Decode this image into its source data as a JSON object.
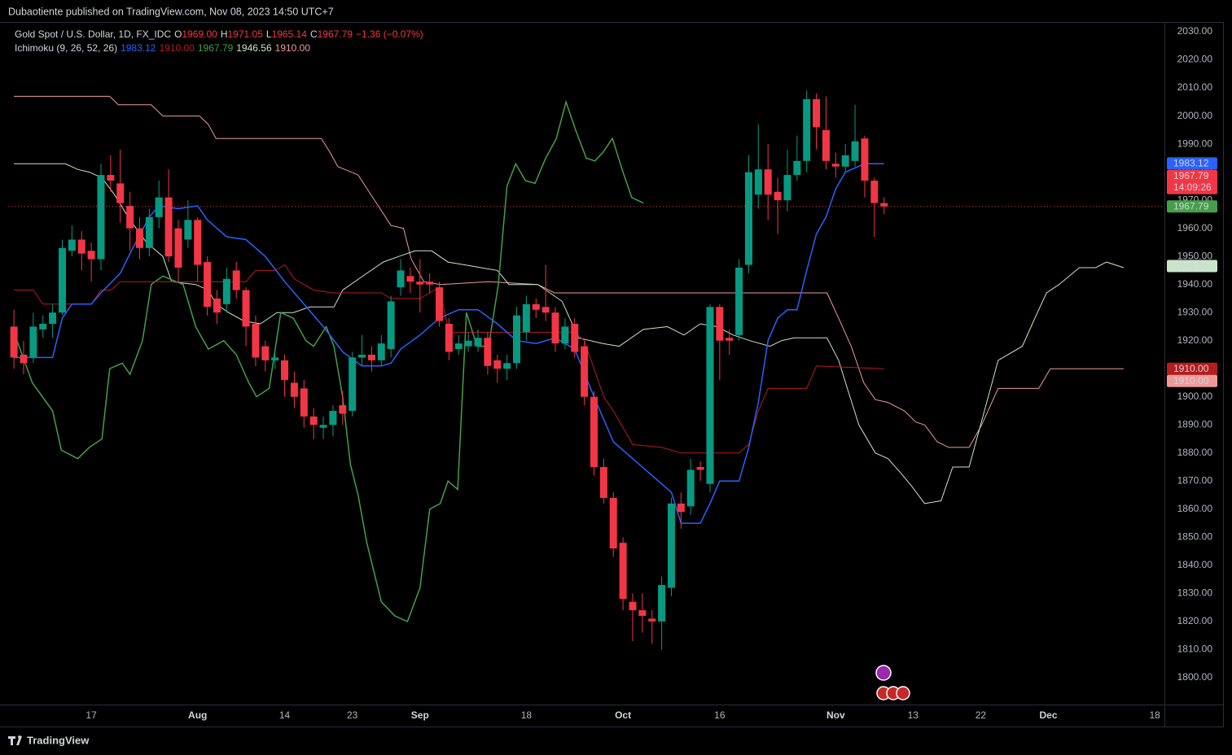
{
  "header": "Dubaotiente published on TradingView.com, Nov 08, 2023 14:50 UTC+7",
  "footer": "TradingView",
  "legend": {
    "symbol": "Gold Spot / U.S. Dollar, 1D, FX_IDC",
    "ohlc": [
      {
        "key": "O",
        "text": "1969.00"
      },
      {
        "key": "H",
        "text": "1971.05"
      },
      {
        "key": "L",
        "text": "1965.14"
      },
      {
        "key": "C",
        "text": "1967.79"
      }
    ],
    "change": "−1.36 (−0.07%)",
    "indicator": "Ichimoku (9, 26, 52, 26)"
  },
  "chart_data": {
    "type": "candlestick",
    "up_color": "#089981",
    "down_color": "#f23645",
    "x": [
      0,
      1,
      2,
      3,
      4,
      5,
      6,
      7,
      8,
      9,
      10,
      11,
      12,
      13,
      14,
      15,
      16,
      17,
      18,
      19,
      20,
      21,
      22,
      23,
      24,
      25,
      26,
      27,
      28,
      29,
      30,
      31,
      32,
      33,
      34,
      35,
      36,
      37,
      38,
      39,
      40,
      41,
      42,
      43,
      44,
      45,
      46,
      47,
      48,
      49,
      50,
      51,
      52,
      53,
      54,
      55,
      56,
      57,
      58,
      59,
      60,
      61,
      62,
      63,
      64,
      65,
      66,
      67,
      68,
      69,
      70,
      71,
      72,
      73,
      74,
      75,
      76,
      77,
      78,
      79,
      80,
      81,
      82,
      83,
      84,
      85,
      86,
      87,
      88,
      89,
      90
    ],
    "open": [
      1925,
      1915,
      1914,
      1924,
      1926,
      1930,
      1952,
      1956,
      1952,
      1949,
      1979,
      1976,
      1968,
      1960,
      1953,
      1964,
      1971,
      1960,
      1956,
      1963,
      1948,
      1935,
      1933,
      1945,
      1938,
      1926,
      1918,
      1913,
      1913,
      1905,
      1903,
      1893,
      1889,
      1890,
      1897,
      1895,
      1914,
      1915,
      1913,
      1917,
      1939,
      1943,
      1941,
      1941,
      1939,
      1926,
      1917,
      1918,
      1918,
      1921,
      1913,
      1910,
      1912,
      1923,
      1933,
      1932,
      1930,
      1919,
      1926,
      1918,
      1900,
      1875,
      1864,
      1848,
      1827,
      1824,
      1821,
      1820,
      1832,
      1862,
      1861,
      1875,
      1869,
      1932,
      1921,
      1922,
      1947,
      1972,
      1981,
      1973,
      1970,
      1979,
      1984,
      2006,
      1995,
      1983,
      1982,
      1984,
      1992,
      1977,
      1969
    ],
    "high": [
      1931,
      1920,
      1930,
      1929,
      1933,
      1956,
      1961,
      1959,
      1955,
      1983,
      1986,
      1988,
      1973,
      1964,
      1967,
      1977,
      1981,
      1963,
      1970,
      1964,
      1950,
      1938,
      1946,
      1948,
      1939,
      1929,
      1920,
      1917,
      1915,
      1909,
      1906,
      1896,
      1893,
      1897,
      1902,
      1916,
      1922,
      1918,
      1922,
      1936,
      1949,
      1946,
      1949,
      1944,
      1941,
      1928,
      1922,
      1923,
      1924,
      1923,
      1915,
      1915,
      1932,
      1936,
      1935,
      1947,
      1932,
      1928,
      1928,
      1920,
      1902,
      1878,
      1866,
      1850,
      1830,
      1830,
      1824,
      1836,
      1864,
      1866,
      1878,
      1877,
      1933,
      1933,
      1924,
      1949,
      1986,
      1997,
      1990,
      1978,
      1988,
      1993,
      2009,
      2008,
      2007,
      1987,
      1990,
      2004,
      1993,
      1978,
      1971.05
    ],
    "low": [
      1910,
      1908,
      1912,
      1921,
      1921,
      1929,
      1950,
      1945,
      1941,
      1945,
      1973,
      1962,
      1952,
      1949,
      1950,
      1960,
      1948,
      1941,
      1953,
      1941,
      1929,
      1926,
      1930,
      1935,
      1918,
      1911,
      1909,
      1910,
      1900,
      1896,
      1889,
      1885,
      1885,
      1886,
      1890,
      1893,
      1911,
      1909,
      1911,
      1914,
      1936,
      1937,
      1930,
      1937,
      1925,
      1913,
      1915,
      1916,
      1916,
      1908,
      1905,
      1906,
      1910,
      1920,
      1928,
      1927,
      1916,
      1917,
      1914,
      1897,
      1872,
      1862,
      1843,
      1824,
      1813,
      1816,
      1812,
      1810,
      1829,
      1853,
      1858,
      1870,
      1866,
      1906,
      1915,
      1920,
      1944,
      1967,
      1963,
      1958,
      1966,
      1977,
      1980,
      1988,
      1981,
      1978,
      1980,
      1982,
      1971,
      1957,
      1965.14
    ],
    "close": [
      1914,
      1912,
      1925,
      1926,
      1930,
      1953,
      1956,
      1951,
      1949,
      1979,
      1977,
      1969,
      1960,
      1953,
      1964,
      1971,
      1950,
      1946,
      1963,
      1947,
      1932,
      1930,
      1942,
      1938,
      1925,
      1914,
      1913,
      1914,
      1906,
      1900,
      1893,
      1890,
      1890,
      1895,
      1894,
      1914,
      1915,
      1913,
      1919,
      1934,
      1945,
      1941,
      1940,
      1940,
      1927,
      1916,
      1919,
      1920,
      1921,
      1911,
      1910,
      1912,
      1929,
      1933,
      1931,
      1930,
      1919,
      1925,
      1916,
      1900,
      1875,
      1864,
      1846,
      1828,
      1824,
      1822,
      1820,
      1833,
      1862,
      1859,
      1874,
      1874,
      1932,
      1920,
      1920,
      1946,
      1980,
      1981,
      1972,
      1970,
      1979,
      1984,
      2006,
      1996,
      1984,
      1982,
      1986,
      1991,
      1977,
      1969,
      1967.79
    ],
    "lines": [
      {
        "color": "#ef9a9a",
        "x": [
          0,
          9.9,
          10.8,
          14.2,
          15.4,
          19.2,
          20.1,
          20.9,
          31.8,
          32.7,
          33.5,
          35.6,
          37.3,
          39.0,
          40.3,
          41.1,
          42.4,
          44.1,
          49.1,
          54.2,
          55.9,
          84.1,
          85.3,
          86.6,
          87.9,
          89.1,
          90.4,
          92.1,
          93.3,
          94.2,
          95.5,
          96.7,
          98.8,
          100.1,
          101.8,
          106.0,
          107.2,
          114.8
        ],
        "values": [
          2007,
          2007,
          2004,
          2004,
          2000,
          2000,
          1997,
          1992,
          1992,
          1987,
          1982,
          1979,
          1970,
          1961,
          1960,
          1949,
          1941,
          1940,
          1941,
          1940,
          1937,
          1937,
          1928,
          1918,
          1905,
          1899,
          1898,
          1895,
          1891,
          1890,
          1884,
          1882,
          1882,
          1890,
          1903,
          1903,
          1910,
          1910
        ]
      },
      {
        "color": "#c8e6c9",
        "x": [
          0,
          5.3,
          6.6,
          7.8,
          9.1,
          10.4,
          12.0,
          13.7,
          15.4,
          16.3,
          18.8,
          20.1,
          20.9,
          22.2,
          23.8,
          25.5,
          27.2,
          28.9,
          30.6,
          33.1,
          34.0,
          36.5,
          38.2,
          39.8,
          41.5,
          43.2,
          44.9,
          46.6,
          48.3,
          50.0,
          51.2,
          54.2,
          56.7,
          58.4,
          60.9,
          62.6,
          65.1,
          67.6,
          69.3,
          71.0,
          72.7,
          74.4,
          76.1,
          78.2,
          79.4,
          80.7,
          84.1,
          85.3,
          86.2,
          87.4,
          89.1,
          90.4,
          91.7,
          92.9,
          94.2,
          95.9,
          97.1,
          98.8,
          101.8,
          104.3,
          105.6,
          106.8,
          108.1,
          110.2,
          111.9,
          113.0,
          114.8
        ],
        "values": [
          1983,
          1983,
          1981,
          1980,
          1978,
          1972,
          1963,
          1955,
          1950,
          1941,
          1940,
          1938,
          1933,
          1930,
          1927,
          1926,
          1930,
          1930,
          1932,
          1932,
          1938,
          1944,
          1948,
          1950,
          1952,
          1952,
          1948,
          1947,
          1946,
          1945,
          1940,
          1940,
          1934,
          1921,
          1919,
          1918,
          1924,
          1925,
          1922,
          1926,
          1925,
          1922,
          1920,
          1918,
          1920,
          1921,
          1921,
          1913,
          1903,
          1890,
          1880,
          1878,
          1873,
          1868,
          1862,
          1863,
          1875,
          1875,
          1913,
          1918,
          1928,
          1937,
          1940,
          1946,
          1946,
          1948,
          1946
        ]
      },
      {
        "color": "#43a047",
        "x": [
          0,
          1.9,
          4.0,
          4.9,
          6.6,
          7.8,
          9.1,
          9.9,
          11.2,
          12.0,
          13.3,
          14.2,
          15.4,
          17.5,
          18.8,
          20.1,
          21.7,
          23.0,
          24.3,
          25.1,
          26.4,
          27.6,
          28.9,
          30.2,
          31.0,
          32.3,
          33.1,
          34.0,
          34.8,
          35.6,
          36.5,
          38.0,
          39.4,
          40.7,
          42.0,
          43.0,
          44.1,
          44.9,
          45.9,
          46.8,
          47.9,
          49.1,
          50.1,
          51.0,
          51.9,
          52.9,
          53.9,
          55.0,
          56.1,
          57.1,
          58.1,
          59.2,
          60.1,
          60.9,
          61.9,
          63.0,
          63.9,
          65.1
        ],
        "values": [
          1923,
          1905,
          1895,
          1881,
          1878,
          1882,
          1885,
          1910,
          1912,
          1908,
          1920,
          1940,
          1943,
          1940,
          1925,
          1917,
          1920,
          1915,
          1905,
          1900,
          1903,
          1930,
          1928,
          1920,
          1918,
          1925,
          1918,
          1900,
          1876,
          1865,
          1848,
          1827,
          1822,
          1820,
          1832,
          1860,
          1862,
          1870,
          1867,
          1930,
          1918,
          1918,
          1940,
          1975,
          1983,
          1977,
          1976,
          1985,
          1992,
          2005,
          1995,
          1985,
          1984,
          1987,
          1992,
          1980,
          1971,
          1969
        ]
      },
      {
        "color": "#b71c1c",
        "x": [
          0,
          2,
          3,
          8,
          9,
          10,
          11,
          24,
          25,
          27,
          28,
          29,
          31,
          33,
          38,
          39,
          42,
          43,
          44,
          45,
          58,
          59,
          61,
          62,
          64,
          67,
          69,
          75,
          76,
          77,
          78,
          82,
          83,
          90
        ],
        "values": [
          1938,
          1938,
          1933,
          1933,
          1938,
          1938,
          1941,
          1941,
          1945,
          1945,
          1947,
          1942,
          1938,
          1937,
          1937,
          1935,
          1935,
          1937,
          1939,
          1923,
          1923,
          1920,
          1900,
          1895,
          1883,
          1882,
          1880,
          1880,
          1883,
          1895,
          1903,
          1903,
          1911,
          1910
        ]
      },
      {
        "color": "#2962ff",
        "x": [
          0,
          4,
          5,
          6,
          8,
          9,
          11,
          12,
          14,
          15,
          17,
          19,
          20,
          22,
          24,
          26,
          28,
          30,
          32,
          34,
          36,
          38,
          39,
          40,
          42,
          44,
          46,
          48,
          50,
          52,
          54,
          56,
          58,
          60,
          62,
          64,
          66,
          68,
          69,
          71,
          72,
          73,
          75,
          76,
          77,
          78,
          79,
          80,
          81,
          82,
          83,
          84,
          85,
          86,
          88,
          90
        ],
        "values": [
          1914,
          1914,
          1928,
          1933,
          1933,
          1937,
          1944,
          1951,
          1964,
          1968,
          1967,
          1968,
          1963,
          1957,
          1956,
          1950,
          1941,
          1933,
          1925,
          1916,
          1911,
          1911,
          1912,
          1917,
          1922,
          1928,
          1931,
          1931,
          1926,
          1920,
          1919,
          1921,
          1917,
          1900,
          1884,
          1878,
          1872,
          1866,
          1855,
          1855,
          1862,
          1870,
          1870,
          1882,
          1898,
          1920,
          1928,
          1931,
          1931,
          1945,
          1958,
          1964,
          1974,
          1980,
          1983,
          1983
        ]
      }
    ],
    "price_tags": [
      {
        "value": 1983.12,
        "color": "#2962ff"
      },
      {
        "value": 1967.79,
        "color": "#f23645",
        "countdown": "14:09:26"
      },
      {
        "value": 1967.79,
        "color": "#43a047"
      },
      {
        "value": 1946.56,
        "color": "#c8e6c9"
      },
      {
        "value": 1910,
        "label": "1910.00",
        "color": "#b71c1c"
      },
      {
        "value": 1910,
        "label": "1910.00",
        "color": "#ef9a9a"
      }
    ],
    "xlim": [
      -0.6,
      119.0
    ],
    "ylim": [
      1790.7,
      2033.2
    ],
    "xticks": [
      {
        "value": 8,
        "label": "17"
      },
      {
        "value": 19,
        "label": "Aug"
      },
      {
        "value": 28,
        "label": "14"
      },
      {
        "value": 35,
        "label": "23"
      },
      {
        "value": 42,
        "label": "Sep"
      },
      {
        "value": 53,
        "label": "18"
      },
      {
        "value": 63,
        "label": "Oct"
      },
      {
        "value": 73,
        "label": "16"
      },
      {
        "value": 85,
        "label": "Nov"
      },
      {
        "value": 93,
        "label": "13"
      },
      {
        "value": 100,
        "label": "22"
      },
      {
        "value": 107,
        "label": "Dec"
      },
      {
        "value": 118,
        "label": "18"
      }
    ],
    "yticks": [
      {
        "value": 1800,
        "label": "1800.00"
      },
      {
        "value": 1810,
        "label": "1810.00"
      },
      {
        "value": 1820,
        "label": "1820.00"
      },
      {
        "value": 1830,
        "label": "1830.00"
      },
      {
        "value": 1840,
        "label": "1840.00"
      },
      {
        "value": 1850,
        "label": "1850.00"
      },
      {
        "value": 1860,
        "label": "1860.00"
      },
      {
        "value": 1870,
        "label": "1870.00"
      },
      {
        "value": 1880,
        "label": "1880.00"
      },
      {
        "value": 1890,
        "label": "1890.00"
      },
      {
        "value": 1900,
        "label": "1900.00"
      },
      {
        "value": 1910,
        "label": "1910.00"
      },
      {
        "value": 1920,
        "label": "1920.00"
      },
      {
        "value": 1930,
        "label": "1930.00"
      },
      {
        "value": 1940,
        "label": "1940.00"
      },
      {
        "value": 1950,
        "label": "1950.00"
      },
      {
        "value": 1960,
        "label": "1960.00"
      },
      {
        "value": 1970,
        "label": "1970.00"
      },
      {
        "value": 1980,
        "label": "1980.00"
      },
      {
        "value": 1990,
        "label": "1990.00"
      },
      {
        "value": 2000,
        "label": "2000.00"
      },
      {
        "value": 2010,
        "label": "2010.00"
      },
      {
        "value": 2020,
        "label": "2020.00"
      },
      {
        "value": 2030,
        "label": "2030.00"
      }
    ],
    "grid": false
  }
}
